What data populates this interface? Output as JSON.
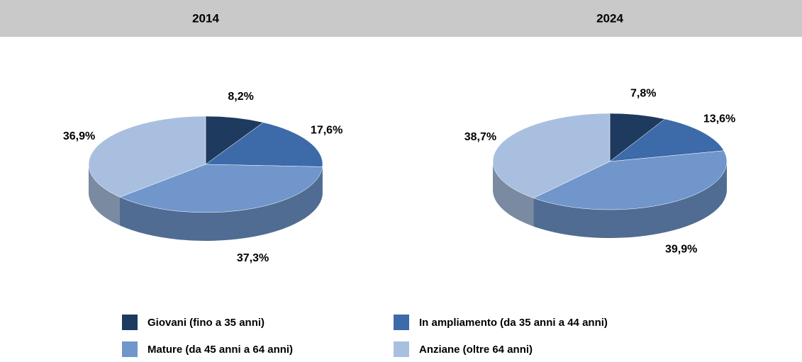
{
  "legend": [
    {
      "name": "Giovani (fino a 35 anni)",
      "color": "#1f3a5f"
    },
    {
      "name": "In ampliamento (da 35 anni a 44 anni)",
      "color": "#3d6aa8"
    },
    {
      "name": "Mature (da 45 anni a 64 anni)",
      "color": "#7096cb"
    },
    {
      "name": "Anziane (oltre 64 anni)",
      "color": "#a9bfe0"
    }
  ],
  "chart_data": [
    {
      "type": "pie",
      "title": "2014",
      "values": [
        8.2,
        17.6,
        37.3,
        36.9
      ],
      "value_labels": [
        "8,2%",
        "17,6%",
        "37,3%",
        "36,9%"
      ]
    },
    {
      "type": "pie",
      "title": "2024",
      "values": [
        7.8,
        13.6,
        39.9,
        38.7
      ],
      "value_labels": [
        "7,8%",
        "13,6%",
        "39,9%",
        "38,7%"
      ]
    }
  ]
}
